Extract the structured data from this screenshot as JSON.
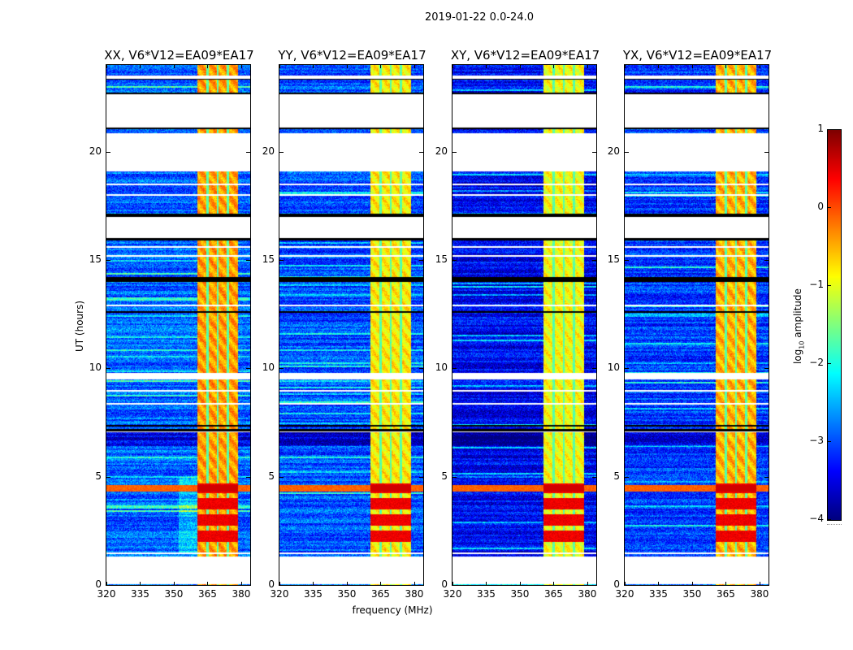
{
  "chart_data": {
    "type": "heatmap",
    "suptitle": "2019-01-22 0.0-24.0",
    "panels": [
      {
        "title": "XX, V6*V12=EA09*EA17",
        "band_level": -0.4,
        "background_level": -2.9
      },
      {
        "title": "YY, V6*V12=EA09*EA17",
        "band_level": -0.8,
        "background_level": -3.0
      },
      {
        "title": "XY, V6*V12=EA09*EA17",
        "band_level": -0.9,
        "background_level": -3.4
      },
      {
        "title": "YX, V6*V12=EA09*EA17",
        "band_level": -0.5,
        "background_level": -3.1
      }
    ],
    "xlabel": "frequency (MHz)",
    "ylabel": "UT (hours)",
    "xlim": [
      320,
      384
    ],
    "ylim": [
      0,
      24
    ],
    "xticks": [
      "320",
      "335",
      "350",
      "365",
      "380"
    ],
    "xtick_values": [
      320,
      335,
      350,
      365,
      380
    ],
    "yticks": [
      "0",
      "5",
      "10",
      "15",
      "20"
    ],
    "ytick_values": [
      0,
      5,
      10,
      15,
      20
    ],
    "data_segments_hours": [
      [
        0,
        0.05
      ],
      [
        1.3,
        7.05
      ],
      [
        7.1,
        9.5
      ],
      [
        9.8,
        16.0
      ],
      [
        17.0,
        19.1
      ],
      [
        20.85,
        21.12
      ],
      [
        22.65,
        23.35
      ],
      [
        23.5,
        24.0
      ]
    ],
    "flagged_lines_hours": [
      1.45,
      8.35,
      8.95,
      15.2,
      15.6,
      12.9,
      18.5,
      18.0,
      23.42
    ],
    "strong_rfi_band_mhz": [
      360.5,
      378.5
    ],
    "strong_rfi_subband_edges_mhz": [
      365,
      369.5,
      374
    ],
    "broadband_rfi_hours": [
      4.3,
      4.6
    ],
    "colorbar": {
      "label": "log10 amplitude",
      "label_main": "log",
      "label_sub": "10",
      "label_rest": " amplitude",
      "range": [
        -4,
        1
      ],
      "ticks": [
        "1",
        "0",
        "−1",
        "−2",
        "−3",
        "−4"
      ],
      "tick_values": [
        1,
        0,
        -1,
        -2,
        -3,
        -4
      ],
      "colormap": "jet"
    }
  }
}
